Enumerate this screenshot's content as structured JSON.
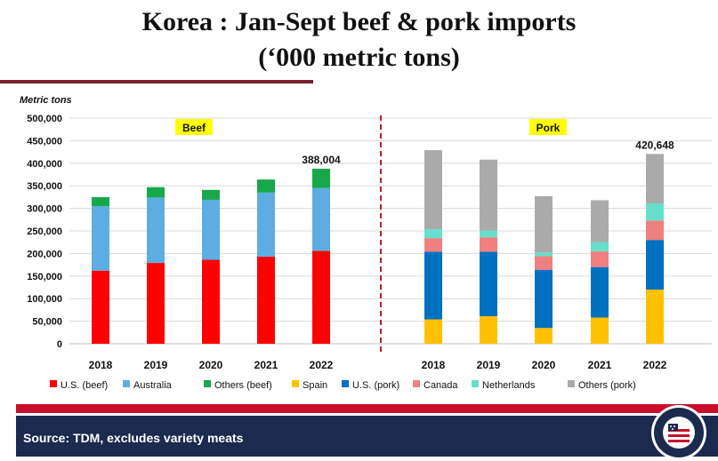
{
  "title_line1": "Korea : Jan-Sept beef & pork imports",
  "title_line2": "(‘000 metric tons)",
  "footer": {
    "source": "Source: TDM, excludes variety meats",
    "logo_top_text": "U.S.MEAT",
    "logo_bottom_text": "EXPORT FEDERATION"
  },
  "chart_data": {
    "type": "bar",
    "stacked": true,
    "ylabel": "Metric tons",
    "ylim": [
      0,
      500000
    ],
    "yticks": [
      0,
      50000,
      100000,
      150000,
      200000,
      250000,
      300000,
      350000,
      400000,
      450000,
      500000
    ],
    "ytick_labels": [
      "0",
      "50,000",
      "100,000",
      "150,000",
      "200,000",
      "250,000",
      "300,000",
      "350,000",
      "400,000",
      "450,000",
      "500,000"
    ],
    "grid": true,
    "legend_position": "bottom",
    "panels": [
      {
        "label": "Beef",
        "categories": [
          "2018",
          "2019",
          "2020",
          "2021",
          "2022"
        ],
        "series": [
          {
            "name": "U.S. (beef)",
            "color": "#ff0000",
            "values": [
              162000,
              179000,
              186000,
              193000,
              206000
            ]
          },
          {
            "name": "Australia",
            "color": "#5dade2",
            "values": [
              143000,
              145000,
              133000,
              142000,
              139000
            ]
          },
          {
            "name": "Others (beef)",
            "color": "#18a84c",
            "values": [
              20000,
              23000,
              22000,
              29000,
              43004
            ]
          }
        ],
        "annotation": {
          "category": "2022",
          "text": "388,004"
        }
      },
      {
        "label": "Pork",
        "categories": [
          "2018",
          "2019",
          "2020",
          "2021",
          "2022"
        ],
        "series": [
          {
            "name": "Spain",
            "color": "#ffc000",
            "values": [
              54000,
              61000,
              35000,
              58000,
              120000
            ]
          },
          {
            "name": "U.S. (pork)",
            "color": "#0070c0",
            "values": [
              150000,
              143000,
              129000,
              112000,
              110000
            ]
          },
          {
            "name": "Canada",
            "color": "#f08080",
            "values": [
              30000,
              32000,
              30000,
              35000,
              43000
            ]
          },
          {
            "name": "Netherlands",
            "color": "#66e0cc",
            "values": [
              20000,
              15000,
              8000,
              20000,
              38000
            ]
          },
          {
            "name": "Others (pork)",
            "color": "#aaaaaa",
            "values": [
              175000,
              157000,
              125000,
              93000,
              109648
            ]
          }
        ],
        "annotation": {
          "category": "2022",
          "text": "420,648"
        }
      }
    ]
  }
}
